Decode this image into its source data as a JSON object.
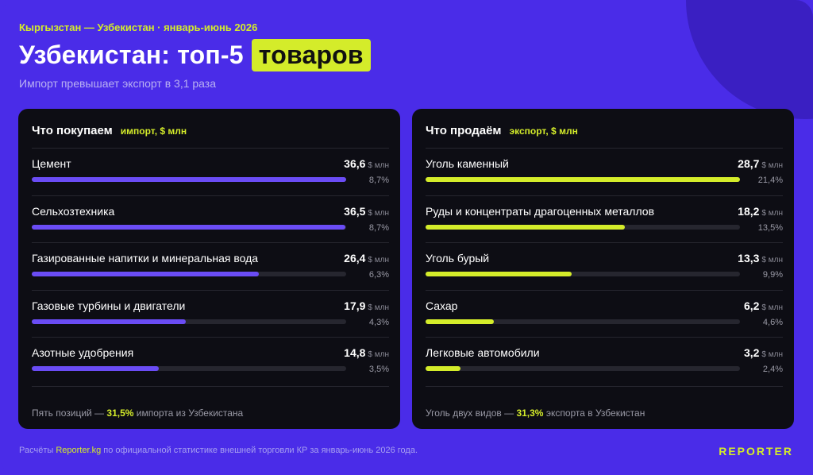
{
  "header": {
    "kicker": "Кыргызстан — Узбекистан · январь-июнь 2026",
    "title_main": "Узбекистан: топ-5",
    "title_highlight": "товаров",
    "subtitle": "Импорт превышает экспорт в 3,1 раза"
  },
  "colors": {
    "background": "#4a2ce8",
    "panel": "#0d0d14",
    "accent_lime": "#d4ec2a",
    "bar_import": "#6a4cf5",
    "bar_export": "#d4ec2a"
  },
  "imports": {
    "title": "Что покупаем",
    "subtitle": "импорт, $ млн",
    "footer_pre": "Пять позиций — ",
    "footer_highlight": "31,5%",
    "footer_post": " импорта из Узбекистана"
  },
  "exports": {
    "title": "Что продаём",
    "subtitle": "экспорт, $ млн",
    "footer_pre": "Уголь двух видов — ",
    "footer_highlight": "31,3%",
    "footer_post": " экспорта в Узбекистан"
  },
  "chart_data": [
    {
      "type": "bar",
      "orientation": "horizontal",
      "title": "Что покупаем",
      "subtitle": "импорт, $ млн",
      "unit": "$ млн",
      "max": 36.6,
      "categories": [
        "Цемент",
        "Сельхозтехника",
        "Газированные напитки и минеральная вода",
        "Газовые турбины и двигатели",
        "Азотные удобрения"
      ],
      "values": [
        36.6,
        36.5,
        26.4,
        17.9,
        14.8
      ],
      "value_labels": [
        "36,6",
        "36,5",
        "26,4",
        "17,9",
        "14,8"
      ],
      "shares": [
        "8,7%",
        "8,7%",
        "6,3%",
        "4,3%",
        "3,5%"
      ],
      "color": "#6a4cf5"
    },
    {
      "type": "bar",
      "orientation": "horizontal",
      "title": "Что продаём",
      "subtitle": "экспорт, $ млн",
      "unit": "$ млн",
      "max": 28.7,
      "categories": [
        "Уголь каменный",
        "Руды и концентраты драгоценных металлов",
        "Уголь бурый",
        "Сахар",
        "Легковые автомобили"
      ],
      "values": [
        28.7,
        18.2,
        13.3,
        6.2,
        3.2
      ],
      "value_labels": [
        "28,7",
        "18,2",
        "13,3",
        "6,2",
        "3,2"
      ],
      "shares": [
        "21,4%",
        "13,5%",
        "9,9%",
        "4,6%",
        "2,4%"
      ],
      "color": "#d4ec2a"
    }
  ],
  "footer": {
    "source_pre": "Расчёты ",
    "source_brand": "Reporter.kg",
    "source_post": " по официальной статистике внешней торговли КР за январь-июнь 2026 года.",
    "logo": "REPORTER"
  }
}
